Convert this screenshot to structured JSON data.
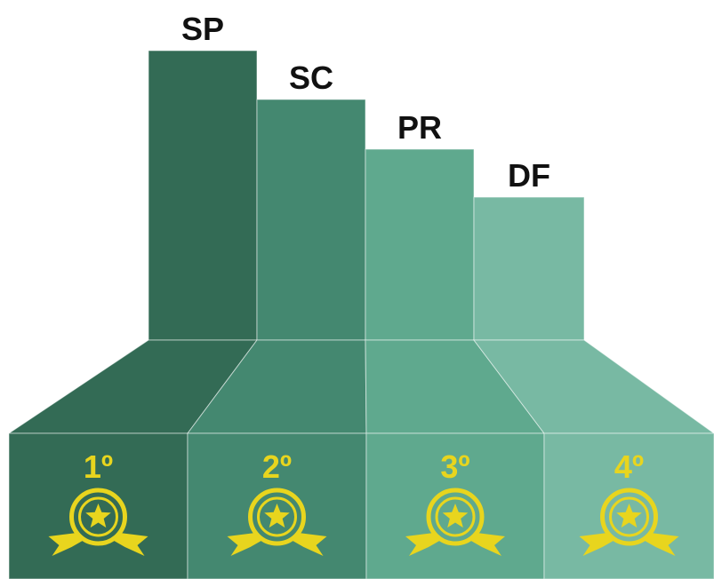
{
  "bars": [
    {
      "label": "SP",
      "rank": "1º"
    },
    {
      "label": "SC",
      "rank": "2º"
    },
    {
      "label": "PR",
      "rank": "3º"
    },
    {
      "label": "DF",
      "rank": "4º"
    }
  ]
}
